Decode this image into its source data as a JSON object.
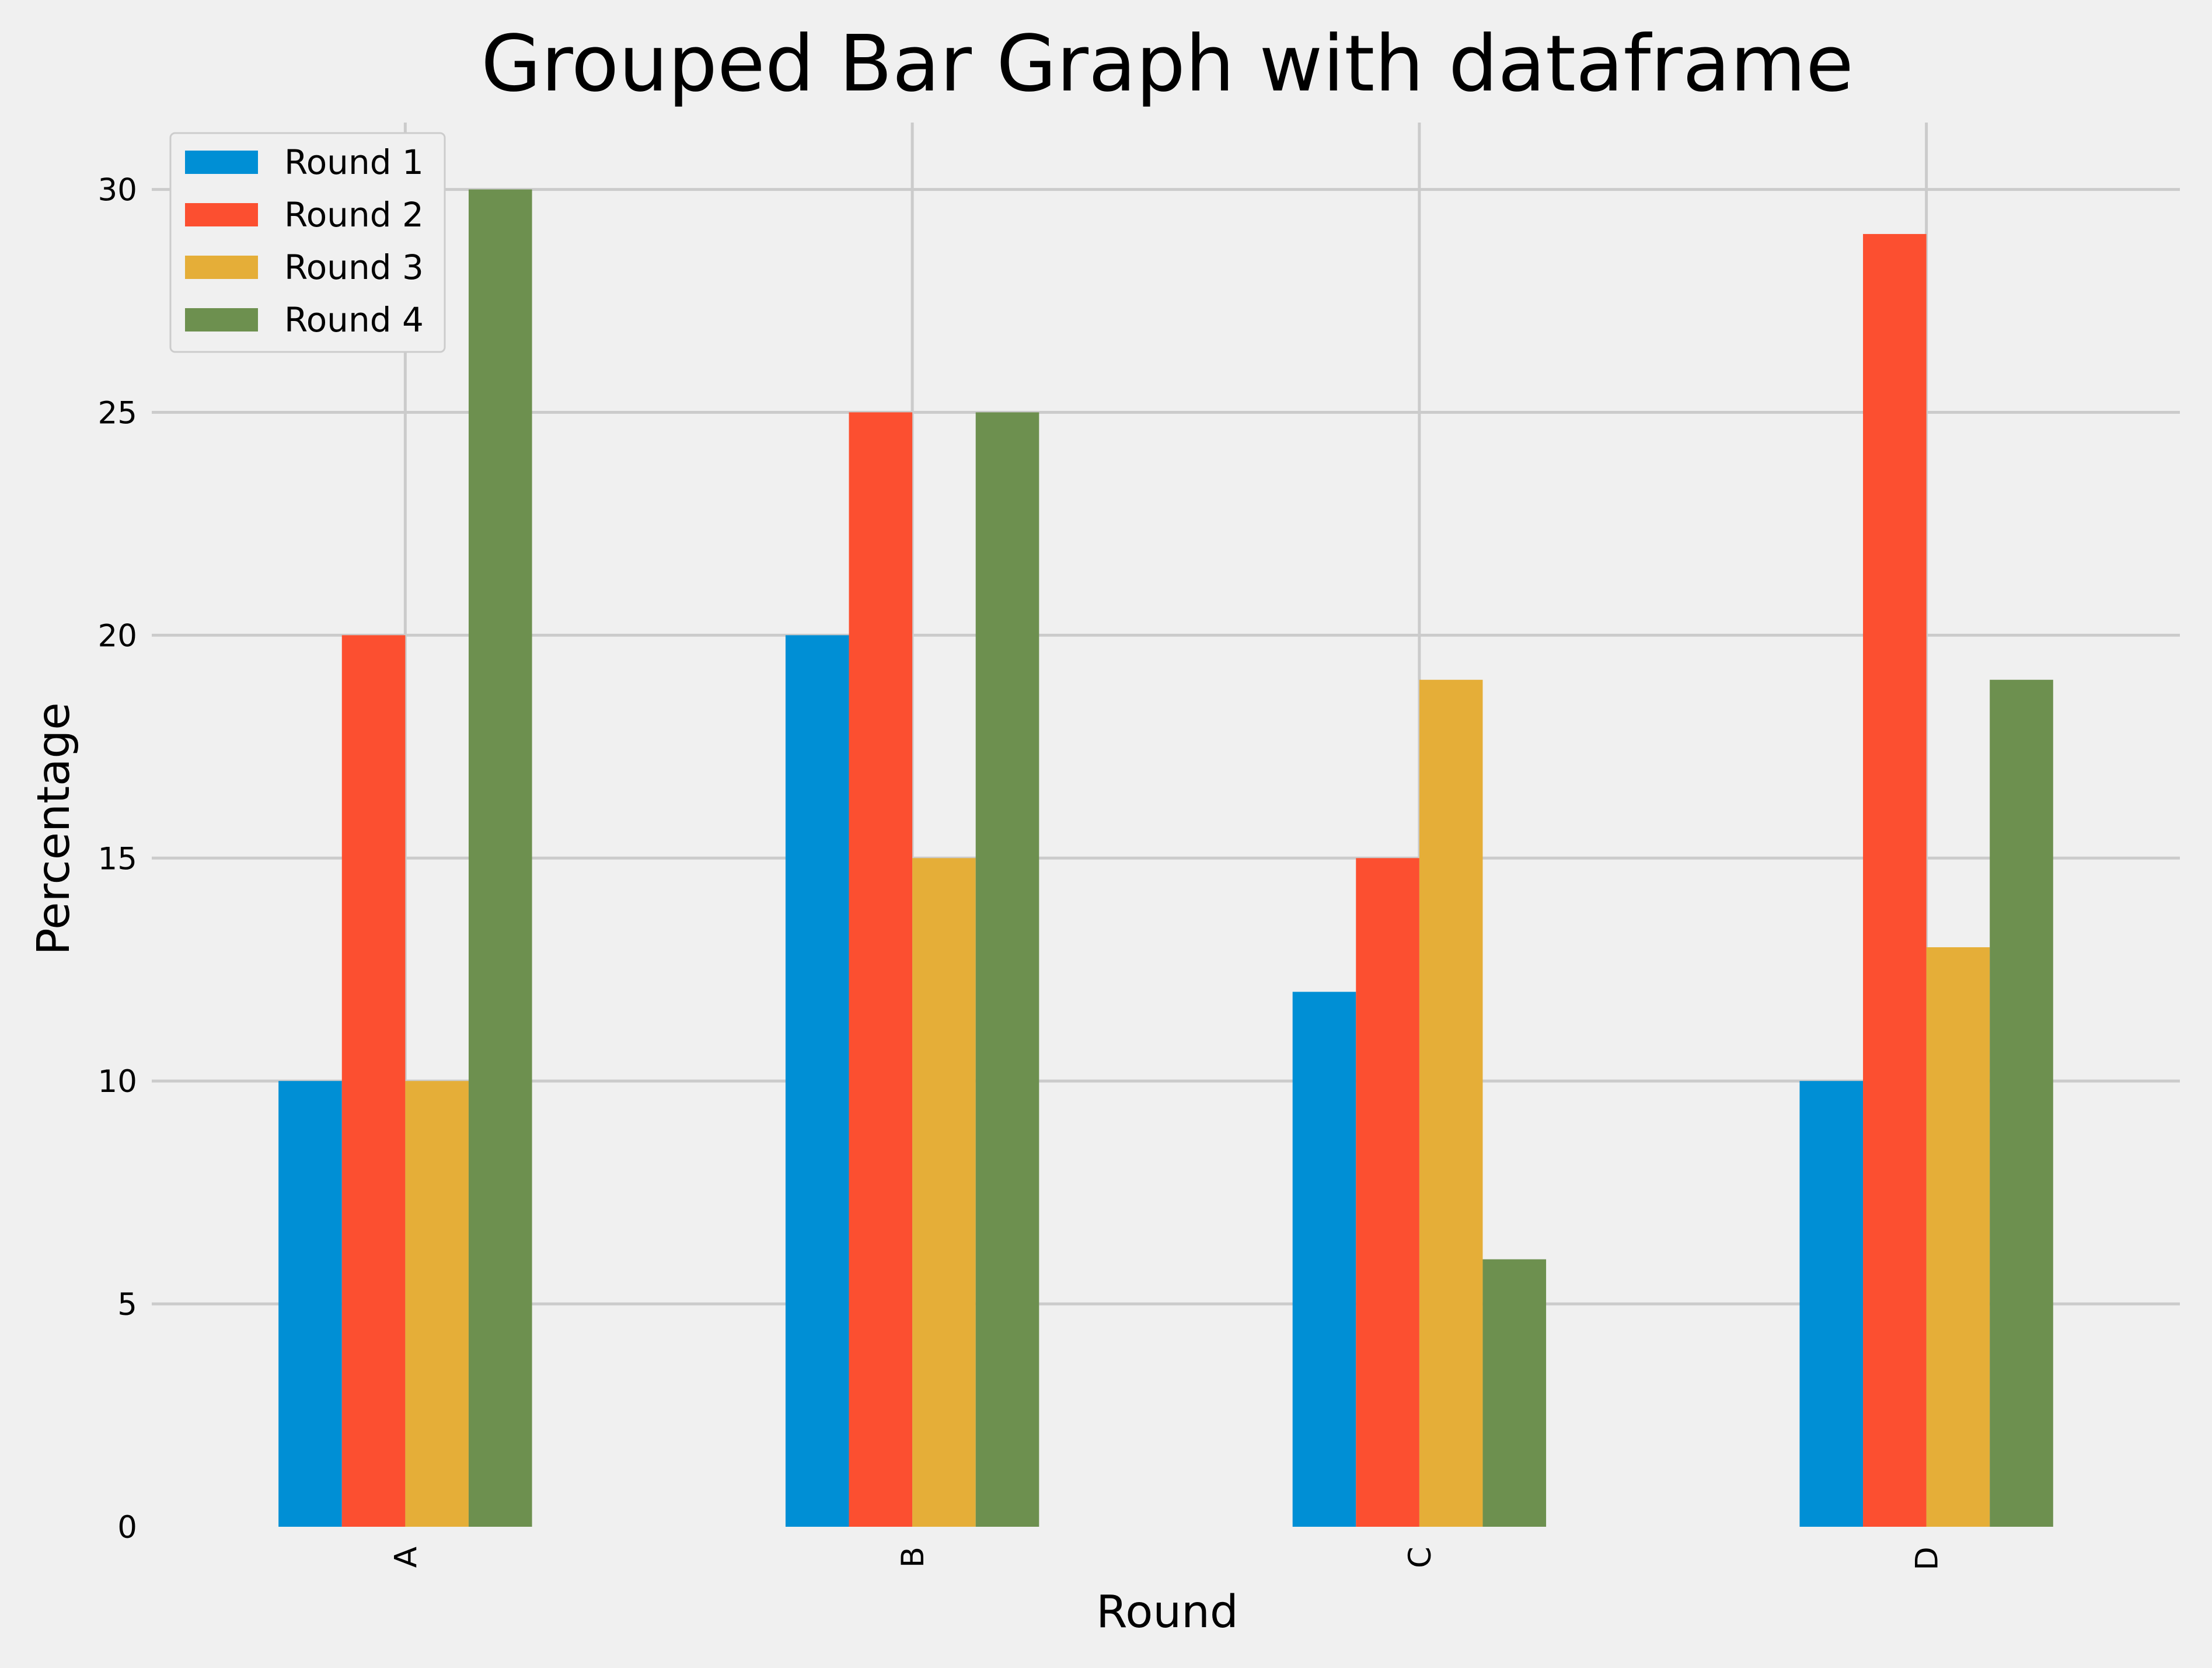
{
  "chart_data": {
    "type": "bar",
    "title": "Grouped Bar Graph with dataframe",
    "xlabel": "Round",
    "ylabel": "Percentage",
    "categories": [
      "A",
      "B",
      "C",
      "D"
    ],
    "series": [
      {
        "name": "Round 1",
        "color": "#008fd5",
        "values": [
          10,
          20,
          12,
          10
        ]
      },
      {
        "name": "Round 2",
        "color": "#fc4f30",
        "values": [
          20,
          25,
          15,
          29
        ]
      },
      {
        "name": "Round 3",
        "color": "#e5ae38",
        "values": [
          10,
          15,
          19,
          13
        ]
      },
      {
        "name": "Round 4",
        "color": "#6d904f",
        "values": [
          30,
          25,
          6,
          19
        ]
      }
    ],
    "yticks": [
      0,
      5,
      10,
      15,
      20,
      25,
      30
    ],
    "ylim": [
      0,
      31.5
    ],
    "grid": true,
    "legend_position": "top-left",
    "background": "#f0f0f0",
    "grid_color": "#cbcbcb"
  }
}
